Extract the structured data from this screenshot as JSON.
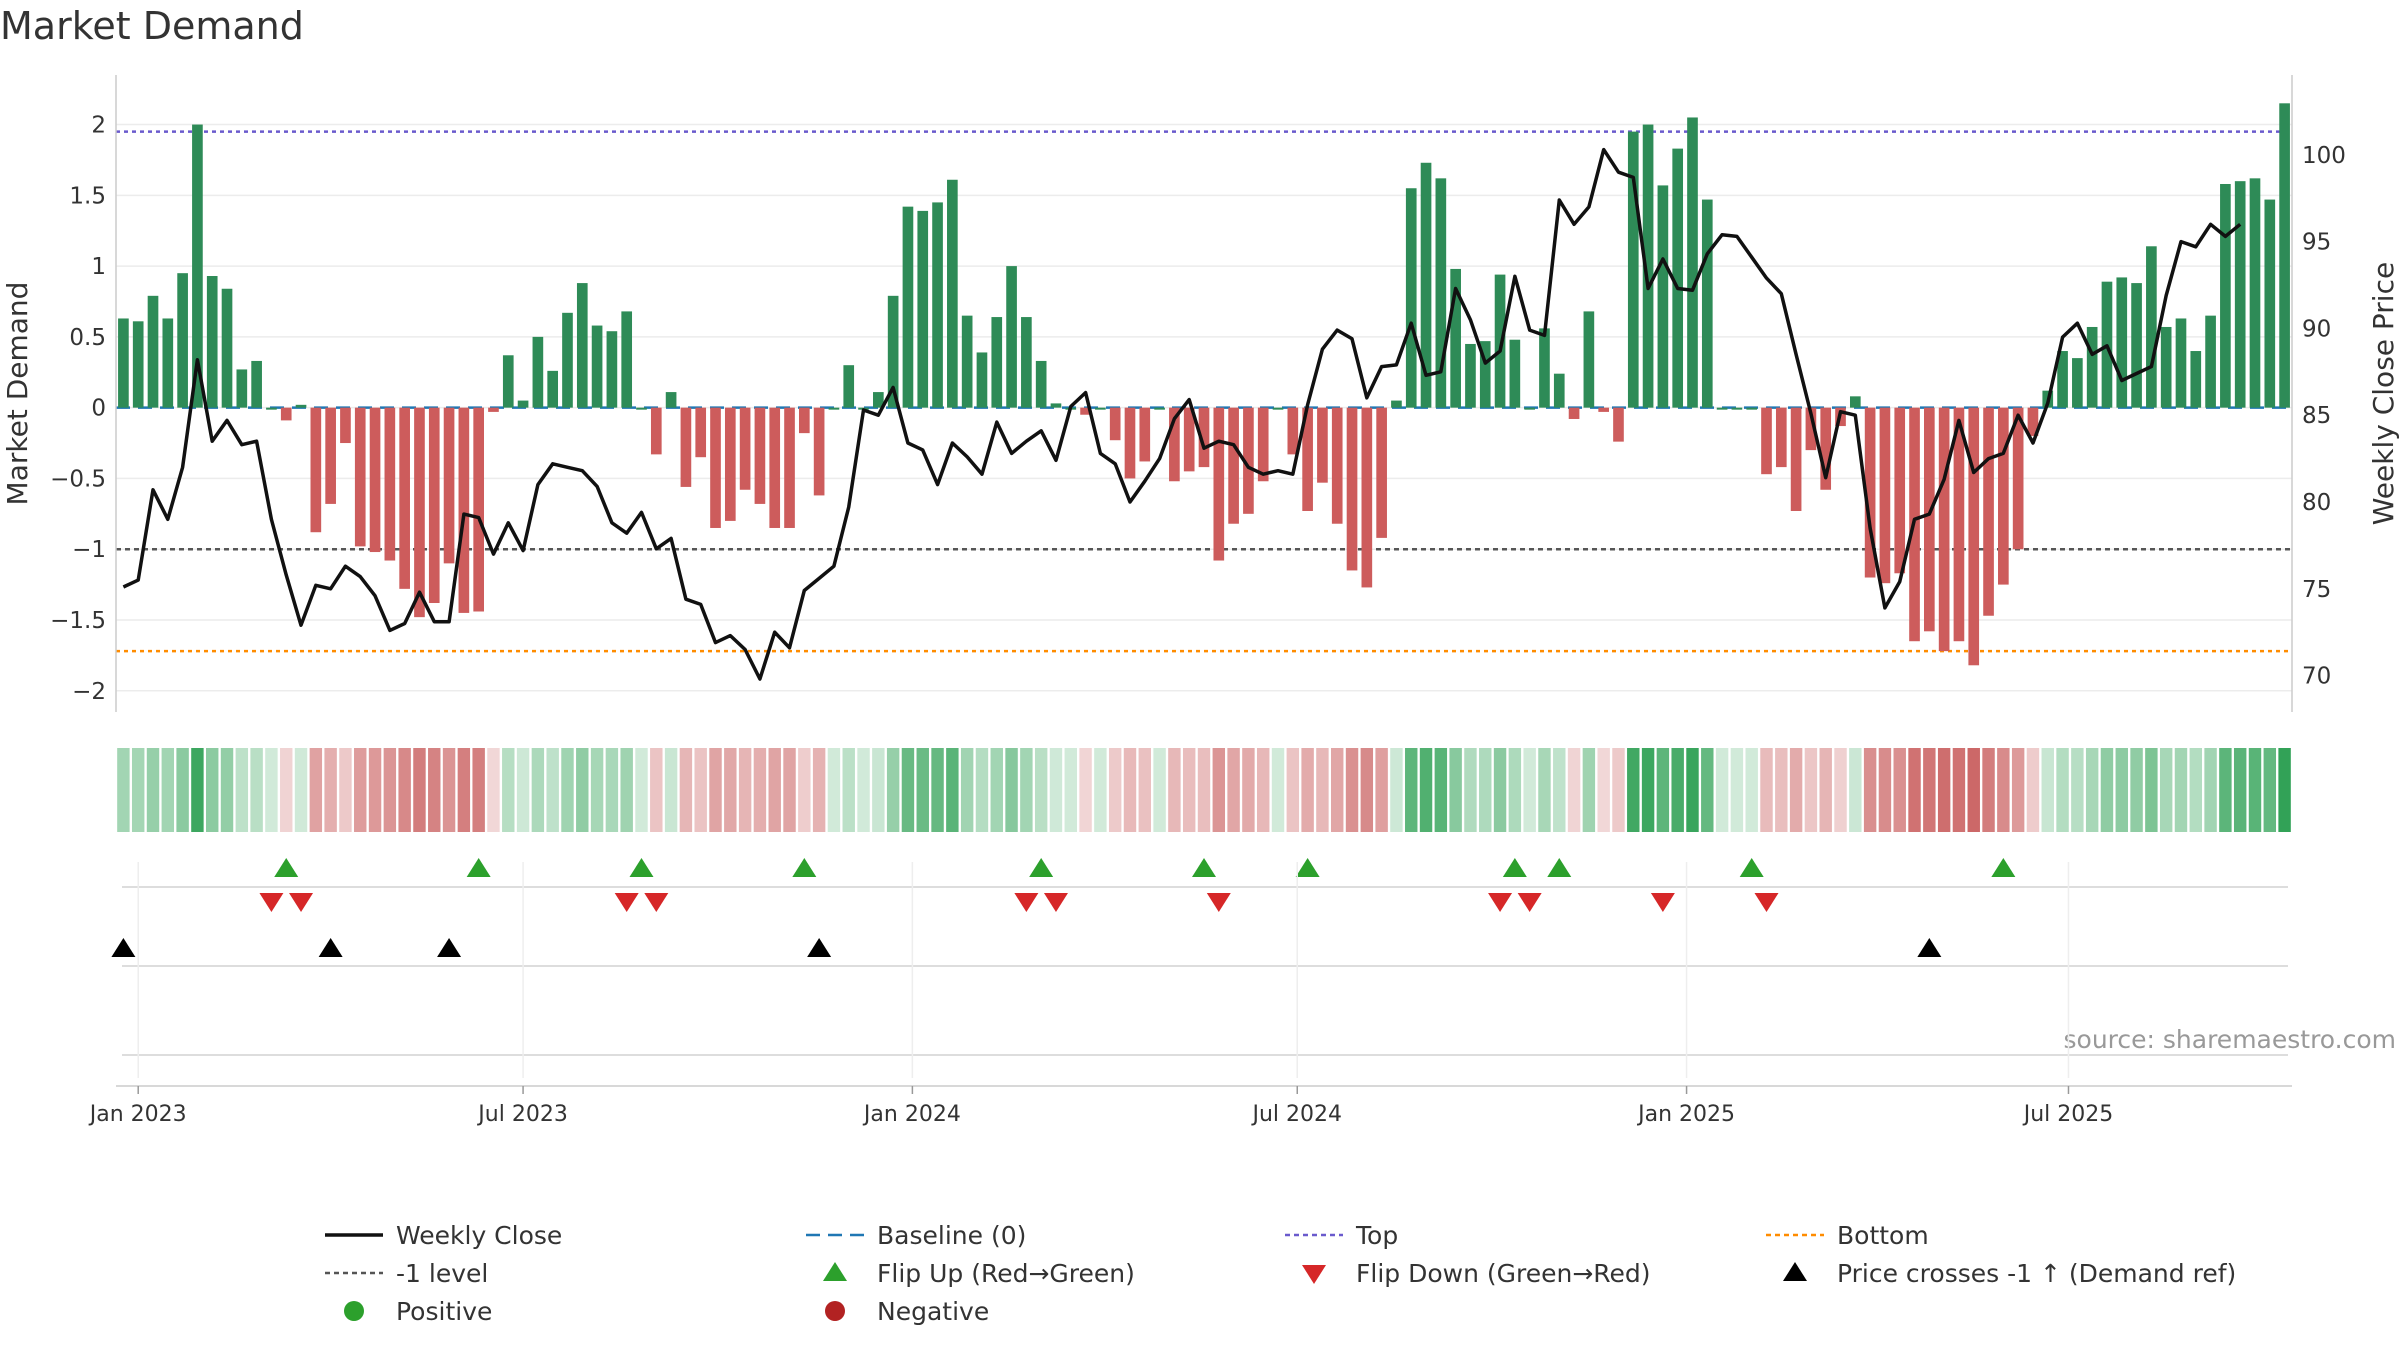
{
  "chart_data": {
    "type": "bar+line",
    "title": "Market Demand",
    "ylabel_left": "Market Demand",
    "ylabel_right": "Weekly Close Price",
    "source": "source: sharemaestro.com",
    "ylim_left": [
      -2.15,
      2.35
    ],
    "yticks_left": [
      {
        "value": 2,
        "label": "2"
      },
      {
        "value": 1.5,
        "label": "1.5"
      },
      {
        "value": 1,
        "label": "1"
      },
      {
        "value": 0.5,
        "label": "0.5"
      },
      {
        "value": 0,
        "label": "0"
      },
      {
        "value": -0.5,
        "label": "−0.5"
      },
      {
        "value": -1,
        "label": "−1"
      },
      {
        "value": -1.5,
        "label": "−1.5"
      },
      {
        "value": -2,
        "label": "−2"
      }
    ],
    "ylim_right": [
      67.9,
      104.6
    ],
    "yticks_right": [
      {
        "value": 100,
        "label": "100"
      },
      {
        "value": 95,
        "label": "95"
      },
      {
        "value": 90,
        "label": "90"
      },
      {
        "value": 85,
        "label": "85"
      },
      {
        "value": 80,
        "label": "80"
      },
      {
        "value": 75,
        "label": "75"
      },
      {
        "value": 70,
        "label": "70"
      }
    ],
    "x_axis": {
      "start_date": "2022-12-26",
      "weeks": 144,
      "ticks": [
        {
          "label": "Jan 2023",
          "week": 1
        },
        {
          "label": "Jul 2023",
          "week": 27
        },
        {
          "label": "Jan 2024",
          "week": 53.3
        },
        {
          "label": "Jul 2024",
          "week": 79.3
        },
        {
          "label": "Jan 2025",
          "week": 105.6
        },
        {
          "label": "Jul 2025",
          "week": 131.4
        }
      ]
    },
    "reference_lines": {
      "baseline": 0,
      "top": 1.95,
      "minus_one_level": -1,
      "bottom": -1.72
    },
    "colors": {
      "positive_bar": "#2e8b57",
      "negative_bar": "#cd5c5c",
      "price_line": "#111111",
      "baseline": "#1f77b4",
      "top": "#6a5acd",
      "bottom": "#ff8c00",
      "minus_one": "#555555",
      "flip_up": "#2ca02c",
      "flip_down": "#d62728",
      "cross": "#000000",
      "positive_dot": "#2ca02c",
      "negative_dot": "#b22222"
    },
    "demand": [
      0.63,
      0.61,
      0.79,
      0.63,
      0.95,
      2.0,
      0.93,
      0.84,
      0.27,
      0.33,
      0.0,
      -0.09,
      0.02,
      -0.88,
      -0.68,
      -0.25,
      -0.98,
      -1.02,
      -1.08,
      -1.28,
      -1.48,
      -1.38,
      -1.1,
      -1.45,
      -1.44,
      -0.03,
      0.37,
      0.05,
      0.5,
      0.26,
      0.67,
      0.88,
      0.58,
      0.54,
      0.68,
      0.0,
      -0.33,
      0.11,
      -0.56,
      -0.35,
      -0.85,
      -0.8,
      -0.58,
      -0.68,
      -0.85,
      -0.85,
      -0.18,
      -0.62,
      0.0,
      0.3,
      0.0,
      0.11,
      0.79,
      1.42,
      1.39,
      1.45,
      1.61,
      0.65,
      0.39,
      0.64,
      1.0,
      0.64,
      0.33,
      0.03,
      0.0,
      -0.05,
      0.0,
      -0.23,
      -0.5,
      -0.38,
      0.0,
      -0.52,
      -0.45,
      -0.42,
      -1.08,
      -0.82,
      -0.75,
      -0.52,
      0.0,
      -0.33,
      -0.73,
      -0.53,
      -0.82,
      -1.15,
      -1.27,
      -0.92,
      0.05,
      1.55,
      1.73,
      1.62,
      0.98,
      0.45,
      0.47,
      0.94,
      0.48,
      0.0,
      0.56,
      0.24,
      -0.08,
      0.68,
      -0.03,
      -0.24,
      1.95,
      2.0,
      1.57,
      1.83,
      2.05,
      1.47,
      0.0,
      0.0,
      0.0,
      -0.47,
      -0.42,
      -0.73,
      -0.3,
      -0.58,
      -0.13,
      0.08,
      -1.2,
      -1.24,
      -1.17,
      -1.65,
      -1.58,
      -1.72,
      -1.65,
      -1.82,
      -1.47,
      -1.25,
      -1.0,
      -0.2,
      0.12,
      0.4,
      0.35,
      0.57,
      0.89,
      0.92,
      0.88,
      1.14,
      0.57,
      0.63,
      0.4,
      0.65,
      1.58,
      1.6,
      1.62,
      1.47,
      2.15
    ],
    "price": [
      75.1,
      75.5,
      80.7,
      79.0,
      82.0,
      88.2,
      83.5,
      84.7,
      83.3,
      83.5,
      79.0,
      75.8,
      72.9,
      75.2,
      75.0,
      76.3,
      75.7,
      74.6,
      72.6,
      73.0,
      74.8,
      73.1,
      73.1,
      79.3,
      79.1,
      77.0,
      78.8,
      77.2,
      81.0,
      82.2,
      82.0,
      81.8,
      80.9,
      78.8,
      78.2,
      79.4,
      77.3,
      77.9,
      74.4,
      74.1,
      71.9,
      72.3,
      71.5,
      69.8,
      72.5,
      71.6,
      74.9,
      75.6,
      76.3,
      79.7,
      85.3,
      85.0,
      86.6,
      83.4,
      83.0,
      81.0,
      83.4,
      82.6,
      81.6,
      84.6,
      82.8,
      83.5,
      84.1,
      82.4,
      85.5,
      86.3,
      82.8,
      82.2,
      80.0,
      81.2,
      82.5,
      84.8,
      85.9,
      83.1,
      83.5,
      83.3,
      82.0,
      81.6,
      81.8,
      81.6,
      85.6,
      88.8,
      89.9,
      89.4,
      86.0,
      87.8,
      87.9,
      90.3,
      87.3,
      87.5,
      92.3,
      90.5,
      88.0,
      88.7,
      93.0,
      89.9,
      89.6,
      97.4,
      96.0,
      97.0,
      100.3,
      99.0,
      98.7,
      92.3,
      94.0,
      92.3,
      92.2,
      94.3,
      95.4,
      95.3,
      94.1,
      92.9,
      92.0,
      88.5,
      85.1,
      81.4,
      85.2,
      85.0,
      78.5,
      73.9,
      75.4,
      79.0,
      79.3,
      81.3,
      84.7,
      81.7,
      82.5,
      82.8,
      85.0,
      83.4,
      85.7,
      89.5,
      90.3,
      88.5,
      89.0,
      87.0,
      87.4,
      87.8,
      91.9,
      95.0,
      94.7,
      96.0,
      95.3,
      96.0
    ]
  },
  "markers": {
    "flip_up_weeks": [
      11,
      24,
      35,
      46,
      62,
      73,
      80,
      94,
      97,
      110,
      127
    ],
    "flip_down_weeks": [
      10,
      12,
      34,
      36,
      61,
      63,
      74,
      93,
      95,
      104,
      111
    ],
    "cross_weeks": [
      0,
      14,
      22,
      47,
      122
    ]
  },
  "legend": {
    "items": [
      {
        "label": "Weekly Close",
        "symbol": "solid-line",
        "color": "#111111"
      },
      {
        "label": "Baseline (0)",
        "symbol": "dashed-line",
        "color": "#1f77b4"
      },
      {
        "label": "Top",
        "symbol": "dotted-line",
        "color": "#6a5acd"
      },
      {
        "label": "Bottom",
        "symbol": "dotted-line",
        "color": "#ff8c00"
      },
      {
        "label": "-1 level",
        "symbol": "dotted-line",
        "color": "#555555"
      },
      {
        "label": "Flip Up (Red→Green)",
        "symbol": "triangle-up",
        "color": "#2ca02c"
      },
      {
        "label": "Flip Down (Green→Red)",
        "symbol": "triangle-down",
        "color": "#d62728"
      },
      {
        "label": "Price crosses -1 ↑ (Demand ref)",
        "symbol": "triangle-up",
        "color": "#000000"
      },
      {
        "label": "Positive",
        "symbol": "dot",
        "color": "#2ca02c"
      },
      {
        "label": "Negative",
        "symbol": "dot",
        "color": "#b22222"
      }
    ]
  }
}
